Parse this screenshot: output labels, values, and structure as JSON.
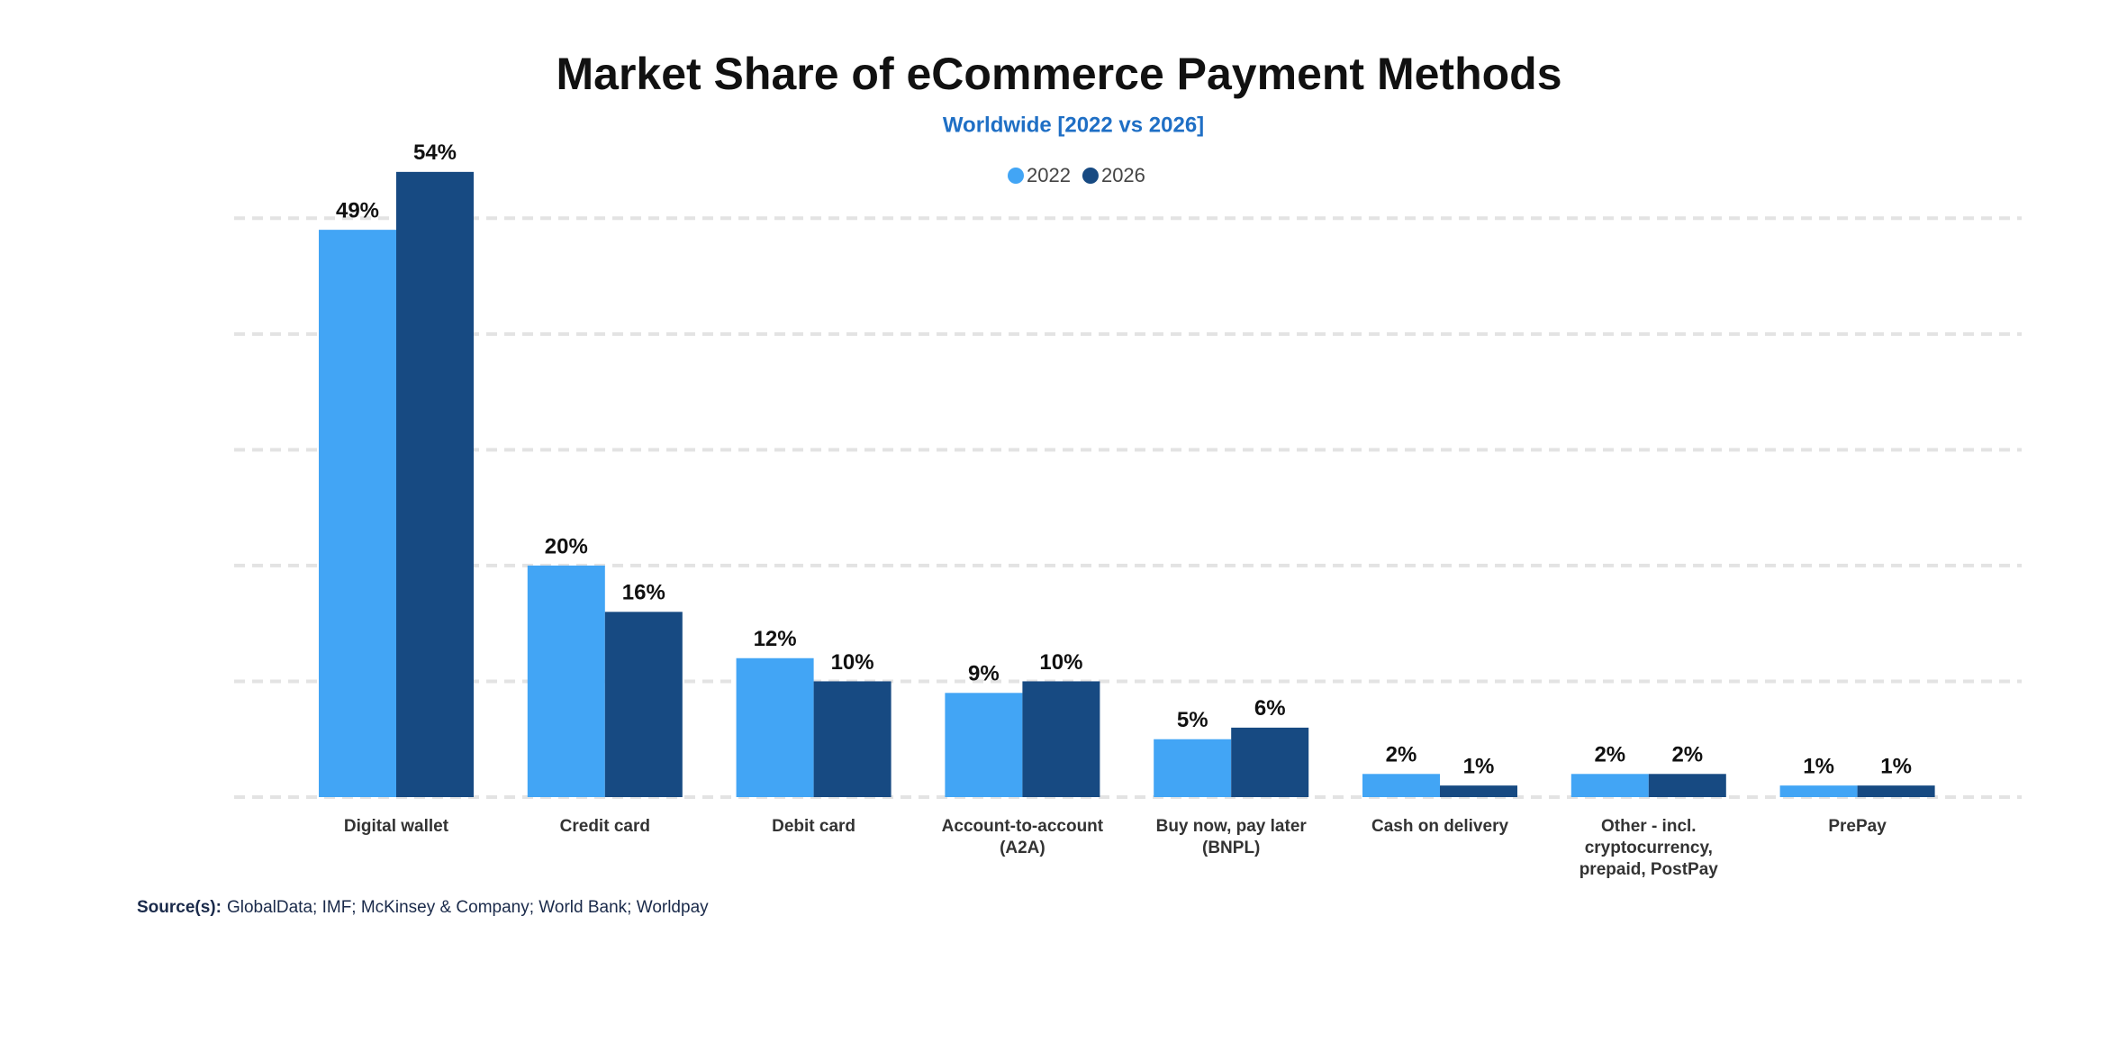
{
  "chart_data": {
    "type": "bar",
    "title": "Market Share of eCommerce Payment Methods",
    "subtitle": "Worldwide [2022 vs 2026]",
    "categories": [
      "Digital wallet",
      "Credit card",
      "Debit card",
      "Account-to-account (A2A)",
      "Buy now, pay later (BNPL)",
      "Cash on delivery",
      "Other - incl. cryptocurrency, prepaid, PostPay",
      "PrePay"
    ],
    "series": [
      {
        "name": "2022",
        "color": "#42a5f5",
        "values": [
          49,
          20,
          12,
          9,
          5,
          2,
          2,
          1
        ],
        "value_labels": [
          "49%",
          "20%",
          "12%",
          "9%",
          "5%",
          "2%",
          "2%",
          "1%"
        ]
      },
      {
        "name": "2026",
        "color": "#174a82",
        "values": [
          54,
          16,
          10,
          10,
          6,
          1,
          2,
          1
        ],
        "value_labels": [
          "54%",
          "16%",
          "10%",
          "10%",
          "6%",
          "1%",
          "2%",
          "1%"
        ]
      }
    ],
    "ylim": [
      0,
      55
    ],
    "yticks": [
      0,
      10,
      20,
      30,
      40,
      50
    ],
    "grid": true,
    "y_tick_labels": false,
    "legend": "top",
    "source_label": "Source(s):",
    "source": "GlobalData; IMF; McKinsey & Company; World Bank; Worldpay"
  }
}
